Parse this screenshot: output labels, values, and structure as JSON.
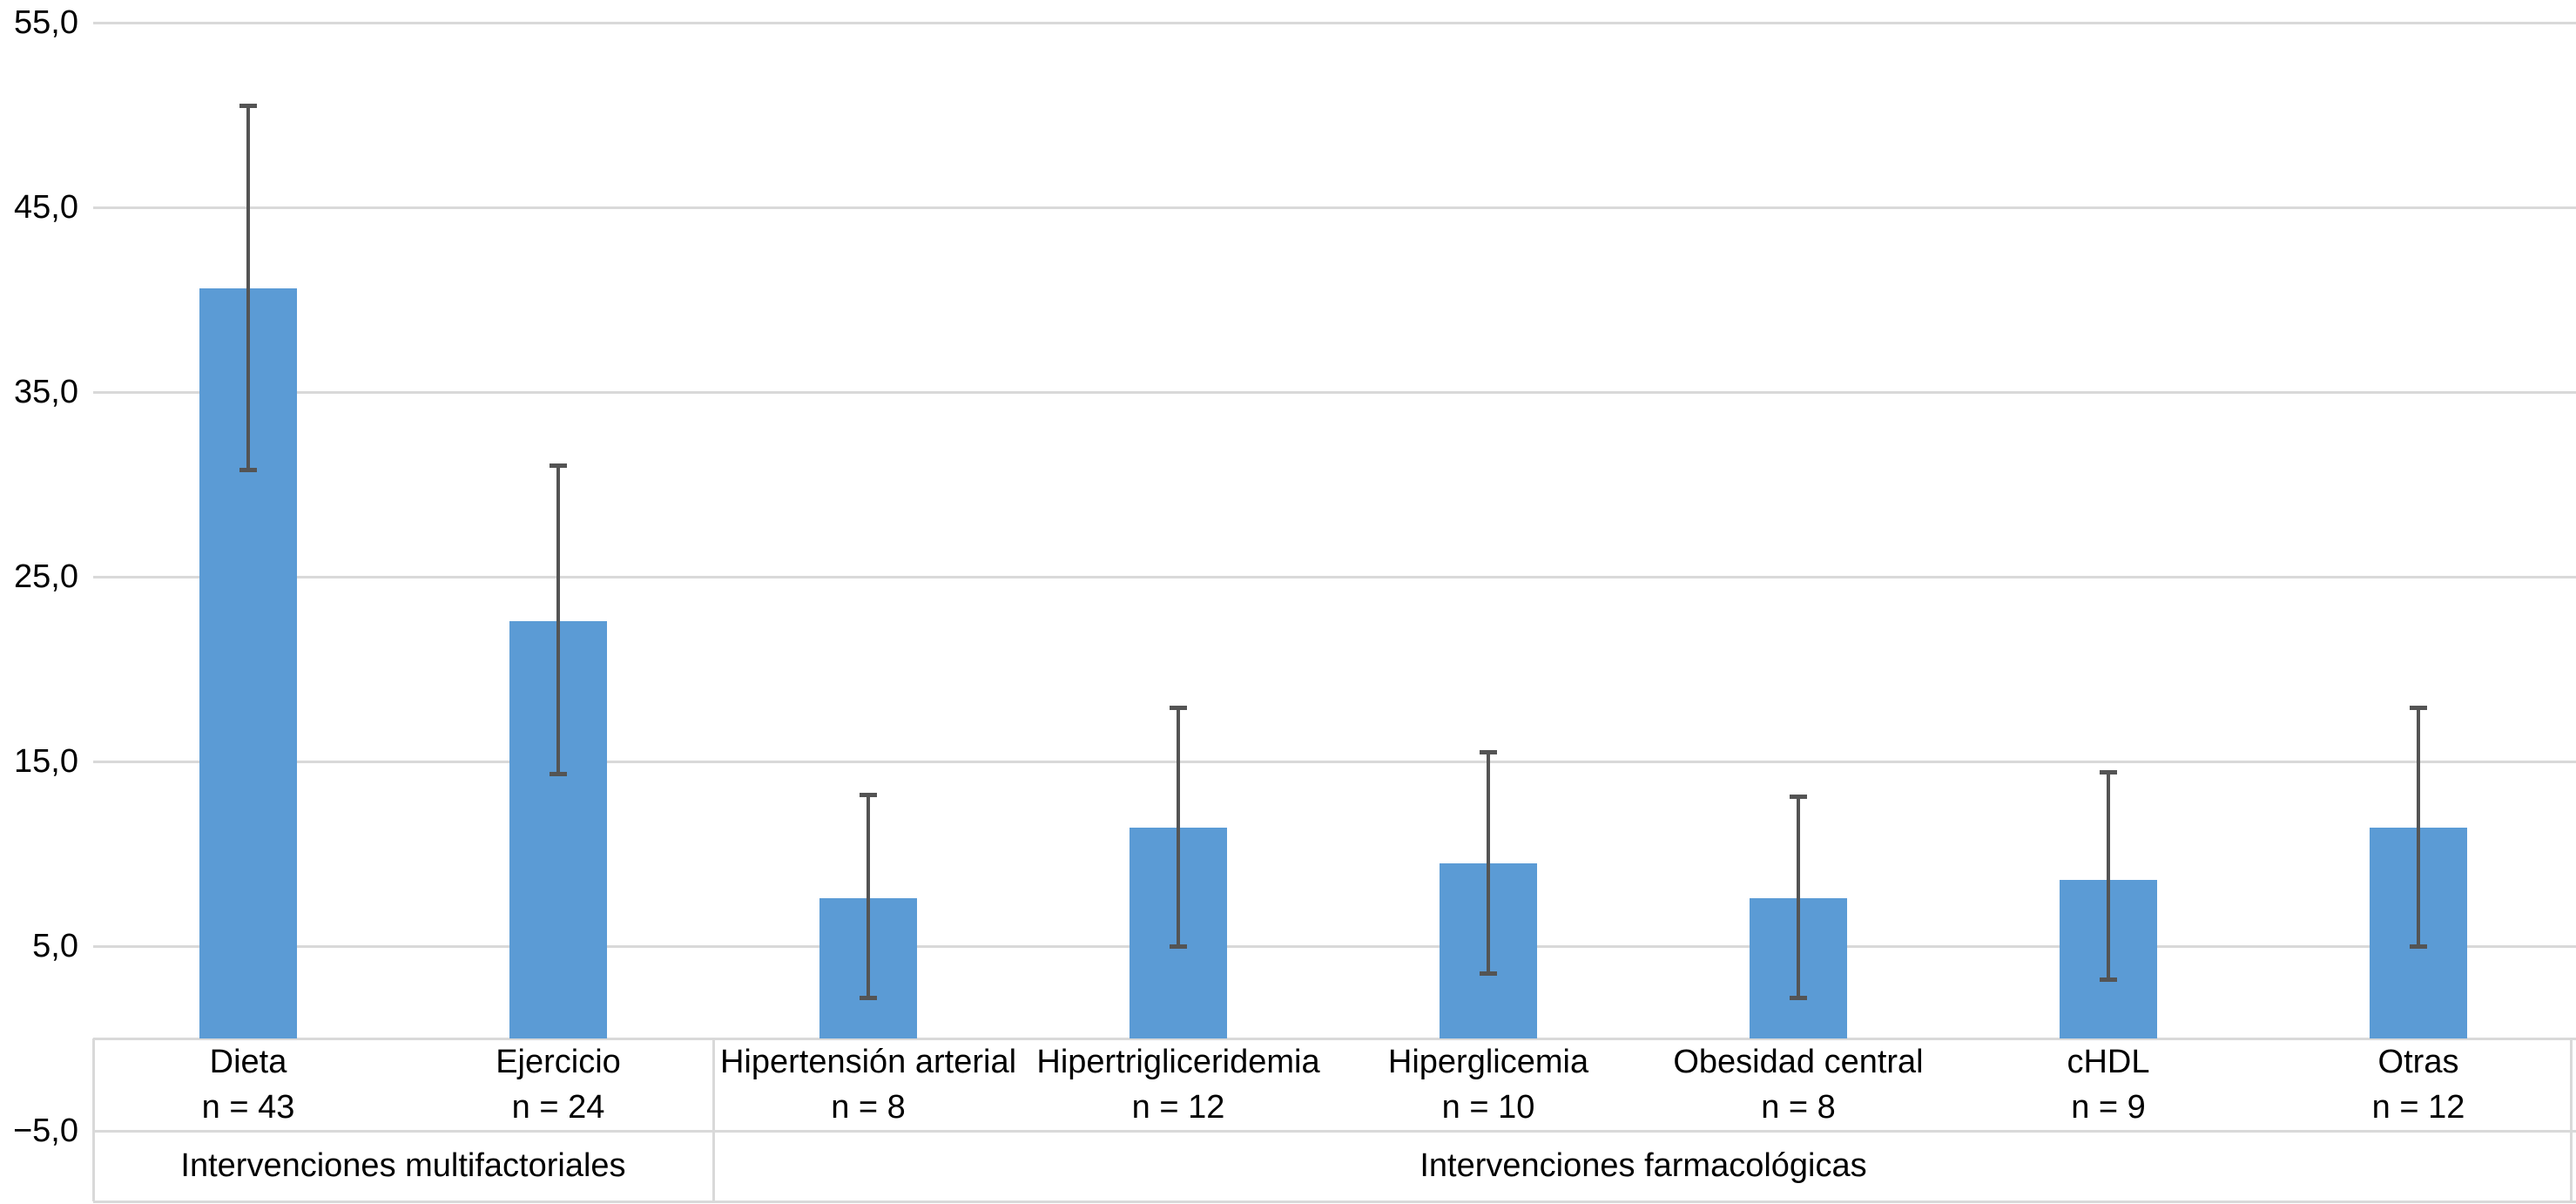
{
  "chart_data": {
    "type": "bar",
    "title": "",
    "orientation": "vertical",
    "background_color": "#FFFFFF",
    "y_axis": {
      "tick_labels": [
        "55,0",
        "45,0",
        "35,0",
        "25,0",
        "15,0",
        "5,0",
        "−5,0"
      ],
      "tick_values": [
        55,
        45,
        35,
        25,
        15,
        5,
        -5
      ],
      "ylim": [
        -5,
        55
      ],
      "gridlines": true,
      "decimal_style": "comma"
    },
    "categories": [
      {
        "label": "Dieta",
        "n_label": "n = 43",
        "n": 43,
        "value": 40.6,
        "ci_low": 30.8,
        "ci_high": 50.5
      },
      {
        "label": "Ejercicio",
        "n_label": "n = 24",
        "n": 24,
        "value": 22.6,
        "ci_low": 14.3,
        "ci_high": 31.0
      },
      {
        "label": "Hipertensión arterial",
        "n_label": "n = 8",
        "n": 8,
        "value": 7.6,
        "ci_low": 2.2,
        "ci_high": 13.2
      },
      {
        "label": "Hipertrigliceridemia",
        "n_label": "n = 12",
        "n": 12,
        "value": 11.4,
        "ci_low": 5.0,
        "ci_high": 17.9
      },
      {
        "label": "Hiperglicemia",
        "n_label": "n = 10",
        "n": 10,
        "value": 9.5,
        "ci_low": 3.5,
        "ci_high": 15.5
      },
      {
        "label": "Obesidad central",
        "n_label": "n = 8",
        "n": 8,
        "value": 7.6,
        "ci_low": 2.2,
        "ci_high": 13.1
      },
      {
        "label": "cHDL",
        "n_label": "n = 9",
        "n": 9,
        "value": 8.6,
        "ci_low": 3.2,
        "ci_high": 14.4
      },
      {
        "label": "Otras",
        "n_label": "n = 12",
        "n": 12,
        "value": 11.4,
        "ci_low": 5.0,
        "ci_high": 17.9
      }
    ],
    "groups": [
      {
        "label": "Intervenciones multifactoriales",
        "start": 0,
        "end": 1
      },
      {
        "label": "Intervenciones farmacológicas",
        "start": 2,
        "end": 7
      }
    ],
    "error_bars": true,
    "legend": "none",
    "colors": {
      "bar": "#5B9BD5",
      "error_bar": "#545454",
      "gridline": "#D9D9D9",
      "band_border": "#D9D9D9",
      "text": "#000000"
    }
  }
}
